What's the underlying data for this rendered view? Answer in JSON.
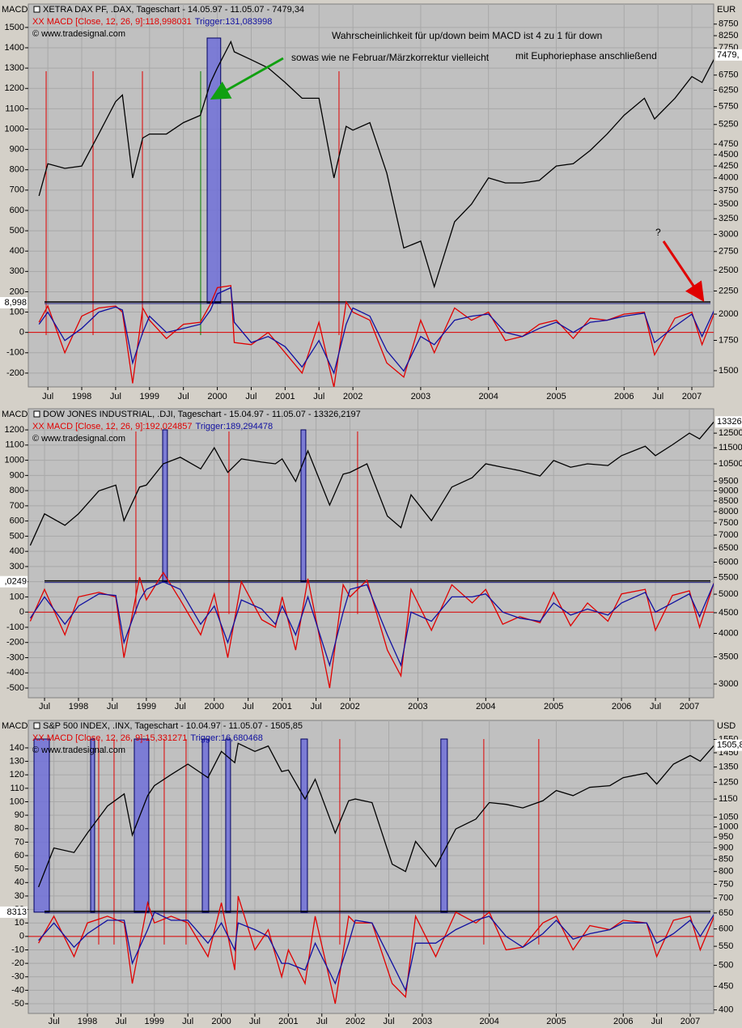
{
  "chart_data": [
    {
      "type": "line",
      "title": "XETRA DAX PF, .DAX, Tageschart - 14.05.97 - 11.05.07 - 7479,34",
      "macd_label": "XX MACD [Close, 12, 26, 9]:118,998031",
      "trigger_label": "Trigger:131,083998",
      "copyright": "© www.tradesignal.com",
      "y_axis_label": "MACD",
      "y2_axis_label": "EUR",
      "level_label": "8,998",
      "last_price_label": "7479,",
      "x": [
        1997.37,
        1997.5,
        1997.75,
        1998.0,
        1998.25,
        1998.5,
        1998.6,
        1998.75,
        1998.9,
        1999.0,
        1999.25,
        1999.5,
        1999.75,
        1999.9,
        2000.0,
        2000.2,
        2000.25,
        2000.5,
        2000.75,
        2001.0,
        2001.25,
        2001.5,
        2001.72,
        2001.9,
        2002.0,
        2002.25,
        2002.5,
        2002.75,
        2003.0,
        2003.2,
        2003.5,
        2003.75,
        2004.0,
        2004.25,
        2004.5,
        2004.75,
        2005.0,
        2005.25,
        2005.5,
        2005.75,
        2006.0,
        2006.3,
        2006.45,
        2006.75,
        2007.0,
        2007.15,
        2007.36
      ],
      "series": [
        {
          "color": "#000000",
          "axis": "y2",
          "values": [
            3650,
            4300,
            4200,
            4250,
            5000,
            5900,
            6100,
            4000,
            4900,
            5000,
            5000,
            5300,
            5500,
            6500,
            7000,
            8000,
            7600,
            7300,
            7000,
            6500,
            6000,
            6000,
            4000,
            5200,
            5100,
            5300,
            4100,
            2800,
            2900,
            2300,
            3200,
            3500,
            4000,
            3900,
            3900,
            3950,
            4250,
            4300,
            4600,
            5000,
            5500,
            6000,
            5400,
            6000,
            6700,
            6500,
            7479.34
          ]
        },
        {
          "color": "#e00000",
          "values": [
            50,
            130,
            -100,
            80,
            120,
            130,
            100,
            -250,
            120,
            60,
            -30,
            40,
            50,
            140,
            220,
            230,
            -50,
            -60,
            0,
            -100,
            -200,
            50,
            -270,
            150,
            100,
            60,
            -150,
            -220,
            60,
            -100,
            120,
            60,
            100,
            -40,
            -20,
            40,
            60,
            -30,
            70,
            60,
            90,
            100,
            -110,
            70,
            100,
            -60,
            118.998
          ]
        },
        {
          "color": "#1010a0",
          "values": [
            40,
            100,
            -40,
            20,
            100,
            125,
            110,
            -150,
            0,
            80,
            0,
            20,
            40,
            110,
            190,
            220,
            50,
            -50,
            -20,
            -70,
            -170,
            -40,
            -200,
            40,
            120,
            80,
            -90,
            -190,
            -20,
            -60,
            60,
            80,
            90,
            0,
            -20,
            20,
            50,
            0,
            50,
            60,
            80,
            95,
            -50,
            30,
            90,
            -20,
            131.084
          ]
        }
      ],
      "xlim": [
        1997.212,
        2007.322
      ],
      "xticks": [
        {
          "value": 1997.5,
          "label": "Jul"
        },
        1998,
        {
          "value": 1998.5,
          "label": "Jul"
        },
        1999,
        {
          "value": 1999.5,
          "label": "Jul"
        },
        2000,
        {
          "value": 2000.5,
          "label": "Jul"
        },
        2001,
        {
          "value": 2001.5,
          "label": "Jul"
        },
        2002,
        2003,
        2004,
        2005,
        2006,
        {
          "value": 2006.5,
          "label": "Jul"
        },
        2007
      ],
      "ylim": [
        -268,
        1615
      ],
      "yticks": [
        1500,
        1400,
        1300,
        1200,
        1100,
        1000,
        900,
        800,
        700,
        600,
        500,
        400,
        300,
        200,
        100,
        0,
        -100,
        -200
      ],
      "y2lim": [
        1381,
        9690
      ],
      "y2_log": true,
      "y2ticks": [
        8750,
        8250,
        7750,
        6750,
        6250,
        5750,
        5250,
        4750,
        4500,
        4250,
        4000,
        3750,
        3500,
        3250,
        3000,
        2750,
        2500,
        2250,
        2000,
        1750,
        1500
      ],
      "grid": true,
      "level": 146,
      "highlights": [
        {
          "start": 1999.85,
          "end": 2000.05
        }
      ],
      "signals": [
        {
          "x": 1997.475,
          "color": "#e00000"
        },
        {
          "x": 1998.167,
          "color": "#e00000"
        },
        {
          "x": 1998.895,
          "color": "#e00000"
        },
        {
          "x": 1999.754,
          "color": "#008000"
        },
        {
          "x": 2001.795,
          "color": "#e00000"
        }
      ],
      "annotations": [
        {
          "text": "Wahrscheinlichkeit für up/down beim MACD ist 4 zu 1 für down",
          "color": "#e00000"
        },
        {
          "text": "sowas wie ne Februar/Märzkorrektur vielleicht",
          "color": "#008000"
        },
        {
          "text": "mit Euphoriephase anschließend",
          "color": "#0000d0"
        },
        {
          "text": "?",
          "color": "#000000"
        }
      ]
    },
    {
      "type": "line",
      "title": "DOW JONES INDUSTRIAL, .DJI, Tageschart - 15.04.97 - 11.05.07 - 13326,2197",
      "macd_label": "XX MACD [Close, 12, 26, 9]:192,024857",
      "trigger_label": "Trigger:189,294478",
      "copyright": "© www.tradesignal.com",
      "y_axis_label": "MACD",
      "level_label": ",0249",
      "last_price_label": "13326",
      "x": [
        1997.29,
        1997.5,
        1997.8,
        1998.0,
        1998.3,
        1998.55,
        1998.67,
        1998.9,
        1999.0,
        1999.25,
        1999.5,
        1999.8,
        2000.0,
        2000.2,
        2000.4,
        2000.7,
        2000.9,
        2001.0,
        2001.2,
        2001.38,
        2001.7,
        2001.9,
        2002.0,
        2002.25,
        2002.55,
        2002.75,
        2002.9,
        2003.2,
        2003.5,
        2003.8,
        2004.0,
        2004.25,
        2004.5,
        2004.8,
        2005.0,
        2005.25,
        2005.5,
        2005.8,
        2006.0,
        2006.35,
        2006.5,
        2006.75,
        2007.0,
        2007.15,
        2007.36
      ],
      "series": [
        {
          "color": "#000000",
          "axis": "y2",
          "values": [
            6600,
            7900,
            7400,
            7900,
            9000,
            9300,
            7600,
            9200,
            9300,
            10500,
            10900,
            10200,
            11500,
            10000,
            10800,
            10600,
            10500,
            10800,
            9500,
            11300,
            8300,
            9900,
            10000,
            10500,
            7800,
            7300,
            8800,
            7600,
            9200,
            9700,
            10500,
            10300,
            10100,
            9800,
            10700,
            10300,
            10500,
            10400,
            11000,
            11600,
            11000,
            11700,
            12500,
            12100,
            13326.22
          ]
        },
        {
          "color": "#e00000",
          "values": [
            -60,
            150,
            -150,
            100,
            130,
            100,
            -300,
            230,
            80,
            260,
            80,
            -150,
            120,
            -300,
            200,
            -50,
            -100,
            100,
            -250,
            220,
            -500,
            180,
            100,
            210,
            -250,
            -420,
            150,
            -120,
            180,
            60,
            150,
            -80,
            -30,
            -70,
            130,
            -90,
            60,
            -60,
            120,
            150,
            -120,
            110,
            140,
            -100,
            192.025
          ]
        },
        {
          "color": "#1010a0",
          "values": [
            -40,
            100,
            -80,
            40,
            120,
            110,
            -200,
            80,
            150,
            200,
            150,
            -80,
            40,
            -200,
            80,
            20,
            -80,
            40,
            -150,
            100,
            -350,
            0,
            150,
            180,
            -150,
            -350,
            0,
            -60,
            100,
            100,
            120,
            0,
            -40,
            -60,
            60,
            -20,
            20,
            -20,
            60,
            130,
            0,
            60,
            120,
            -30,
            189.294
          ]
        }
      ],
      "xlim": [
        1997.261,
        2007.358
      ],
      "xticks": [
        {
          "value": 1997.5,
          "label": "Jul"
        },
        1998,
        {
          "value": 1998.5,
          "label": "Jul"
        },
        1999,
        {
          "value": 1999.5,
          "label": "Jul"
        },
        2000,
        {
          "value": 2000.5,
          "label": "Jul"
        },
        2001,
        {
          "value": 2001.5,
          "label": "Jul"
        },
        2002,
        2003,
        2004,
        2005,
        2006,
        {
          "value": 2006.5,
          "label": "Jul"
        },
        2007
      ],
      "ylim": [
        -564,
        1339
      ],
      "yticks": [
        1200,
        1100,
        1000,
        900,
        800,
        700,
        600,
        500,
        400,
        300,
        200,
        100,
        0,
        -100,
        -200,
        -300,
        -400,
        -500
      ],
      "y2lim": [
        2774,
        14360
      ],
      "y2_log": true,
      "y2ticks": [
        12500,
        11500,
        10500,
        9500,
        9000,
        8500,
        8000,
        7500,
        7000,
        6500,
        6000,
        5500,
        5000,
        4500,
        4000,
        3500,
        3000
      ],
      "grid": true,
      "level": 200,
      "highlights": [
        {
          "start": 1999.24,
          "end": 1999.31
        },
        {
          "start": 2001.278,
          "end": 2001.349
        }
      ],
      "signals": [
        {
          "x": 1998.846,
          "color": "#e00000"
        },
        {
          "x": 2000.217,
          "color": "#e00000"
        },
        {
          "x": 2002.112,
          "color": "#e00000"
        }
      ],
      "annotations": []
    },
    {
      "type": "line",
      "title": "S&P 500 INDEX, .INX, Tageschart - 10.04.97 - 11.05.07 - 1505,85",
      "macd_label": "XX MACD [Close, 12, 26, 9]:15,331271",
      "trigger_label": "Trigger:16,680468",
      "copyright": "© www.tradesignal.com",
      "y_axis_label": "MACD",
      "y2_axis_label": "USD",
      "level_label": "8313",
      "last_price_label": "1505,8",
      "x": [
        1997.27,
        1997.5,
        1997.8,
        1998.0,
        1998.3,
        1998.55,
        1998.67,
        1998.9,
        1999.0,
        1999.25,
        1999.5,
        1999.8,
        2000.0,
        2000.2,
        2000.25,
        2000.5,
        2000.7,
        2000.9,
        2001.0,
        2001.25,
        2001.4,
        2001.7,
        2001.9,
        2002.0,
        2002.25,
        2002.55,
        2002.75,
        2002.9,
        2003.2,
        2003.5,
        2003.8,
        2004.0,
        2004.25,
        2004.5,
        2004.8,
        2005.0,
        2005.25,
        2005.5,
        2005.8,
        2006.0,
        2006.35,
        2006.5,
        2006.75,
        2007.0,
        2007.15,
        2007.36
      ],
      "series": [
        {
          "color": "#000000",
          "axis": "y2",
          "values": [
            740,
            900,
            880,
            970,
            1110,
            1180,
            960,
            1170,
            1230,
            1300,
            1370,
            1280,
            1460,
            1380,
            1520,
            1460,
            1500,
            1320,
            1330,
            1150,
            1270,
            970,
            1140,
            1150,
            1130,
            830,
            800,
            930,
            820,
            990,
            1040,
            1130,
            1120,
            1100,
            1140,
            1200,
            1170,
            1220,
            1230,
            1280,
            1310,
            1240,
            1370,
            1430,
            1390,
            1505.85
          ]
        },
        {
          "color": "#e00000",
          "values": [
            -5,
            15,
            -15,
            10,
            15,
            10,
            -35,
            25,
            10,
            15,
            10,
            -15,
            25,
            -25,
            30,
            -10,
            5,
            -30,
            -10,
            -35,
            15,
            -50,
            15,
            10,
            10,
            -35,
            -45,
            15,
            -15,
            18,
            10,
            18,
            -10,
            -8,
            10,
            15,
            -10,
            8,
            5,
            12,
            10,
            -15,
            12,
            15,
            -10,
            15.33
          ]
        },
        {
          "color": "#1010a0",
          "values": [
            -3,
            10,
            -8,
            2,
            12,
            12,
            -20,
            5,
            18,
            12,
            12,
            -5,
            10,
            -10,
            10,
            5,
            0,
            -20,
            -20,
            -25,
            -5,
            -35,
            -5,
            12,
            10,
            -20,
            -40,
            -5,
            -5,
            5,
            12,
            15,
            0,
            -8,
            2,
            12,
            -2,
            2,
            5,
            10,
            10,
            -5,
            2,
            12,
            0,
            16.68
          ]
        }
      ],
      "xlim": [
        1997.118,
        2007.35
      ],
      "xticks": [
        {
          "value": 1997.5,
          "label": "Jul"
        },
        1998,
        {
          "value": 1998.5,
          "label": "Jul"
        },
        1999,
        {
          "value": 1999.5,
          "label": "Jul"
        },
        2000,
        {
          "value": 2000.5,
          "label": "Jul"
        },
        2001,
        {
          "value": 2001.5,
          "label": "Jul"
        },
        2002,
        {
          "value": 2002.5,
          "label": "Jul"
        },
        2003,
        2004,
        2005,
        2006,
        {
          "value": 2006.5,
          "label": "Jul"
        },
        2007
      ],
      "ylim": [
        -57.2,
        160.4
      ],
      "yticks": [
        140,
        130,
        120,
        110,
        100,
        90,
        80,
        70,
        60,
        50,
        40,
        30,
        20,
        10,
        0,
        -10,
        -20,
        -30,
        -40,
        -50
      ],
      "y2lim": [
        393,
        1705
      ],
      "y2_log": true,
      "y2ticks": [
        1550,
        1450,
        1350,
        1250,
        1150,
        1050,
        1000,
        950,
        900,
        850,
        800,
        750,
        700,
        650,
        600,
        550,
        500,
        450,
        400
      ],
      "grid": true,
      "level": 18,
      "highlights": [
        {
          "start": 1997.203,
          "end": 1997.432
        },
        {
          "start": 1998.048,
          "end": 1998.108
        },
        {
          "start": 1998.7,
          "end": 1998.917
        },
        {
          "start": 1999.715,
          "end": 1999.811
        },
        {
          "start": 2000.065,
          "end": 2000.137
        },
        {
          "start": 2001.188,
          "end": 2001.285
        },
        {
          "start": 2003.277,
          "end": 2003.374
        }
      ],
      "signals": [
        {
          "x": 1998.169,
          "color": "#e00000"
        },
        {
          "x": 1998.398,
          "color": "#e00000"
        },
        {
          "x": 1999.147,
          "color": "#e00000"
        },
        {
          "x": 1999.473,
          "color": "#e00000"
        },
        {
          "x": 2001.768,
          "color": "#e00000"
        },
        {
          "x": 2003.918,
          "color": "#e00000"
        },
        {
          "x": 2004.739,
          "color": "#e00000"
        }
      ],
      "annotations": []
    }
  ]
}
